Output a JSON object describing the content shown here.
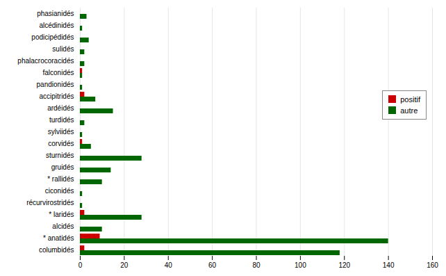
{
  "chart_data": {
    "type": "bar",
    "orientation": "horizontal",
    "categories": [
      "phasianidés",
      "alcédinidés",
      "podicipédidés",
      "sulidés",
      "phalacrocoracidés",
      "falconidés",
      "pandionidés",
      "accipitridés",
      "ardéidés",
      "turdidés",
      "sylviidés",
      "corvidés",
      "sturnidés",
      "gruidés",
      "* rallidés",
      "ciconidés",
      "récurvirostridés",
      "* laridés",
      "alcidés",
      "* anatidés",
      "columbidés"
    ],
    "series": [
      {
        "name": "positif",
        "color": "#cc0000",
        "values": [
          0,
          0,
          0,
          0,
          0,
          1,
          0,
          2,
          0,
          0,
          0,
          1,
          0,
          0,
          0,
          0,
          0,
          2,
          0,
          9,
          2
        ]
      },
      {
        "name": "autre",
        "color": "#006600",
        "values": [
          3,
          1,
          4,
          2,
          2,
          1,
          1,
          7,
          15,
          2,
          1,
          5,
          28,
          14,
          10,
          1,
          1,
          28,
          10,
          140,
          118
        ]
      }
    ],
    "xlim": [
      0,
      160
    ],
    "xticks": [
      0,
      20,
      40,
      60,
      80,
      100,
      120,
      140,
      160
    ],
    "grid": true,
    "legend": "right"
  }
}
